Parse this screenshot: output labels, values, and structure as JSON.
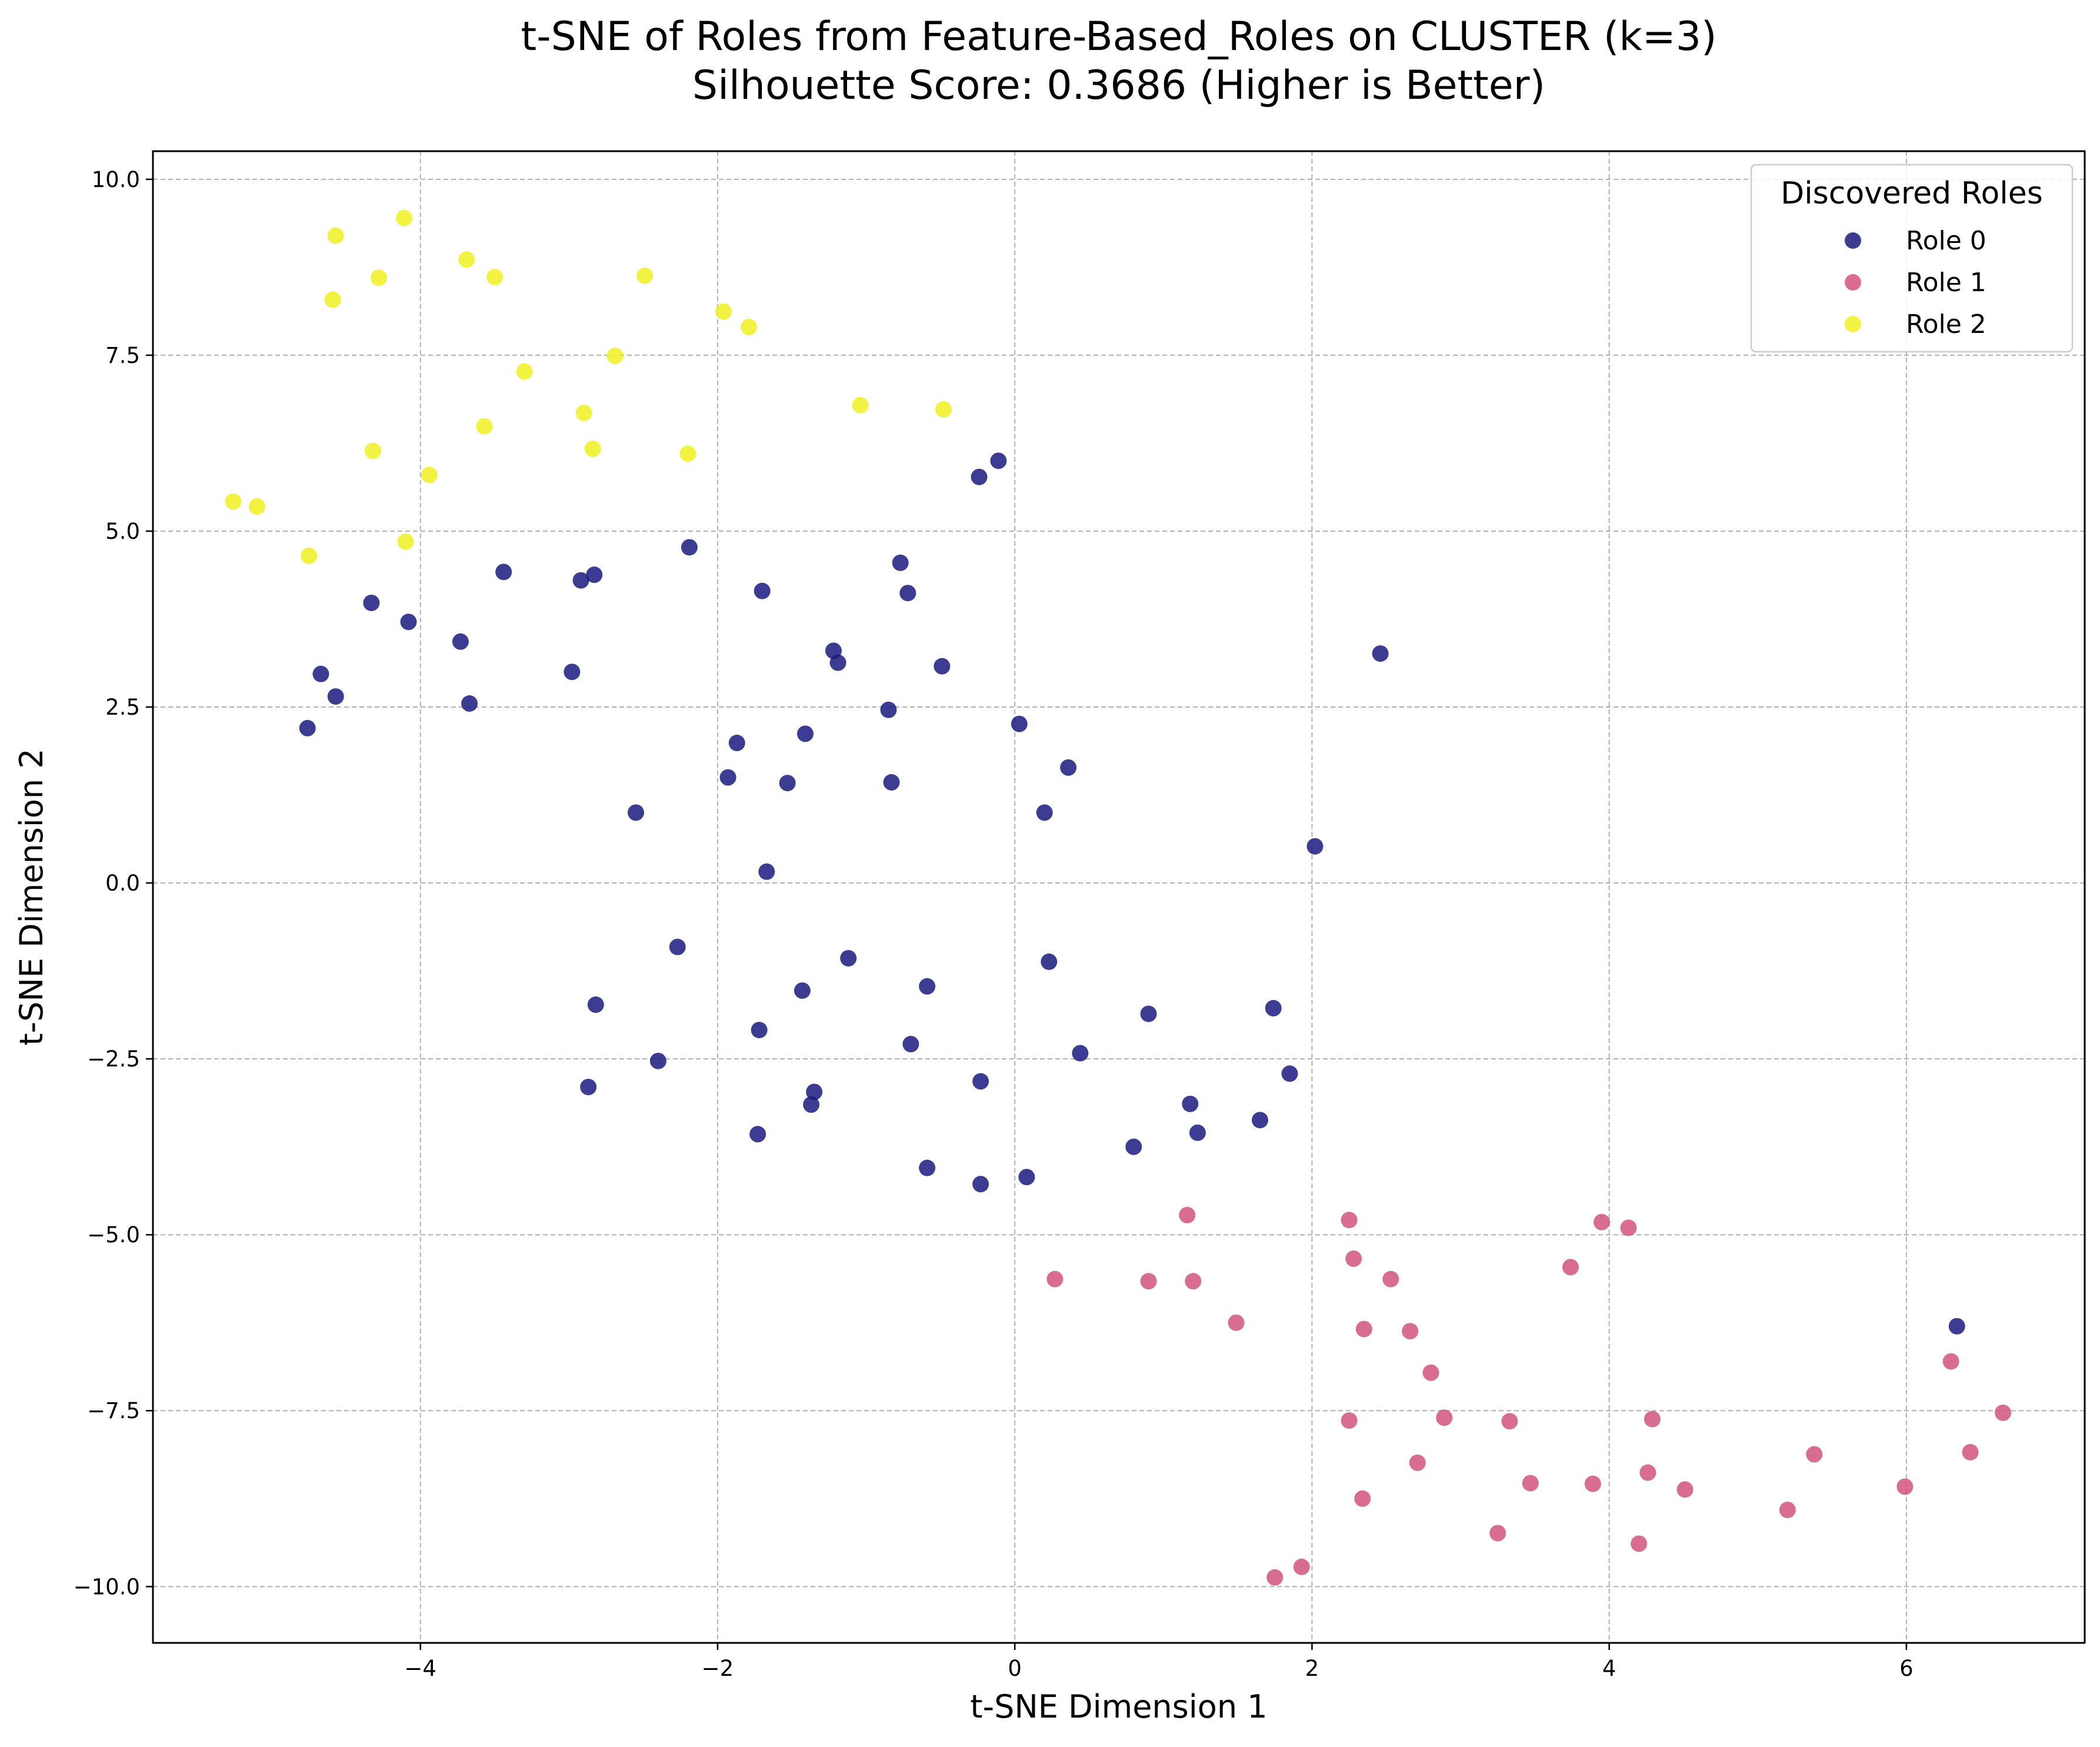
{
  "chart_data": {
    "type": "scatter",
    "title": [
      "t-SNE of Roles from Feature-Based_Roles on CLUSTER (k=3)",
      "Silhouette Score: 0.3686 (Higher is Better)"
    ],
    "xlabel": "t-SNE Dimension 1",
    "ylabel": "t-SNE Dimension 2",
    "xlim": [
      -5.8,
      7.2
    ],
    "ylim": [
      -10.8,
      10.4
    ],
    "xticks": [
      -4,
      -2,
      0,
      2,
      4,
      6
    ],
    "xtick_labels": [
      "−4",
      "−2",
      "0",
      "2",
      "4",
      "6"
    ],
    "yticks": [
      -10.0,
      -7.5,
      -5.0,
      -2.5,
      0.0,
      2.5,
      5.0,
      7.5,
      10.0
    ],
    "ytick_labels": [
      "−10.0",
      "−7.5",
      "−5.0",
      "−2.5",
      "0.0",
      "2.5",
      "5.0",
      "7.5",
      "10.0"
    ],
    "grid": true,
    "legend": {
      "title": "Discovered Roles",
      "position": "top-right"
    },
    "series": [
      {
        "name": "Role 0",
        "color": "#1a1a80",
        "x": [
          -0.11,
          -0.24,
          -2.19,
          -0.77,
          -0.72,
          -1.7,
          -2.92,
          -2.83,
          -3.44,
          -4.33,
          -4.08,
          -3.73,
          -4.67,
          -4.57,
          -4.76,
          -3.67,
          -2.98,
          -1.22,
          -1.19,
          -0.49,
          -0.85,
          -1.41,
          -1.87,
          -1.93,
          -1.53,
          -0.83,
          -2.55,
          -1.67,
          0.03,
          0.2,
          0.36,
          2.02,
          2.46,
          -2.27,
          -1.12,
          -0.59,
          -1.43,
          -2.82,
          -2.4,
          -2.87,
          -1.72,
          -0.7,
          -1.35,
          -1.37,
          -1.73,
          -0.23,
          0.23,
          0.44,
          0.9,
          1.74,
          1.85,
          1.18,
          1.23,
          1.65,
          0.8,
          0.08,
          -0.23,
          -0.59,
          6.34
        ],
        "y": [
          6.0,
          5.77,
          4.77,
          4.55,
          4.12,
          4.15,
          4.3,
          4.38,
          4.42,
          3.98,
          3.71,
          3.43,
          2.97,
          2.65,
          2.2,
          2.55,
          3.0,
          3.3,
          3.13,
          3.08,
          2.46,
          2.12,
          1.99,
          1.5,
          1.42,
          1.43,
          1.0,
          0.16,
          2.26,
          1.0,
          1.64,
          0.52,
          3.26,
          -0.91,
          -1.07,
          -1.47,
          -1.53,
          -1.73,
          -2.53,
          -2.9,
          -2.09,
          -2.29,
          -2.97,
          -3.15,
          -3.57,
          -2.82,
          -1.12,
          -2.42,
          -1.86,
          -1.78,
          -2.71,
          -3.14,
          -3.55,
          -3.37,
          -3.75,
          -4.18,
          -4.28,
          -4.05,
          -6.3
        ]
      },
      {
        "name": "Role 1",
        "color": "#d1537e",
        "x": [
          0.27,
          0.9,
          1.2,
          1.16,
          1.49,
          2.25,
          2.28,
          2.35,
          2.53,
          2.66,
          2.8,
          2.89,
          2.25,
          2.71,
          2.34,
          1.75,
          1.93,
          3.33,
          3.25,
          3.47,
          3.74,
          3.95,
          4.13,
          3.89,
          4.29,
          4.26,
          4.2,
          4.51,
          5.2,
          5.38,
          5.99,
          6.3,
          6.43,
          6.65
        ],
        "y": [
          -5.63,
          -5.66,
          -5.66,
          -4.72,
          -6.25,
          -4.79,
          -5.34,
          -6.34,
          -5.63,
          -6.37,
          -6.96,
          -7.6,
          -7.64,
          -8.24,
          -8.75,
          -9.87,
          -9.72,
          -7.65,
          -9.24,
          -8.53,
          -5.46,
          -4.82,
          -4.9,
          -8.54,
          -7.62,
          -8.38,
          -9.39,
          -8.62,
          -8.91,
          -8.12,
          -8.58,
          -6.8,
          -8.09,
          -7.53
        ]
      },
      {
        "name": "Role 2",
        "color": "#f0f022",
        "x": [
          -4.11,
          -4.57,
          -4.28,
          -4.59,
          -3.69,
          -3.5,
          -2.49,
          -1.96,
          -1.79,
          -3.3,
          -2.69,
          -2.9,
          -2.84,
          -2.2,
          -3.57,
          -1.04,
          -0.48,
          -4.32,
          -3.94,
          -5.26,
          -5.1,
          -4.75,
          -4.1
        ],
        "y": [
          9.45,
          9.2,
          8.6,
          8.29,
          8.86,
          8.61,
          8.63,
          8.12,
          7.9,
          7.27,
          7.49,
          6.68,
          6.17,
          6.1,
          6.49,
          6.79,
          6.73,
          6.14,
          5.8,
          5.42,
          5.35,
          4.65,
          4.85
        ]
      }
    ]
  }
}
